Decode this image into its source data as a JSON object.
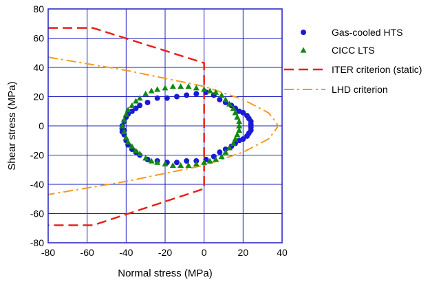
{
  "chart_data": {
    "type": "scatter",
    "xlabel": "Normal stress (MPa)",
    "ylabel": "Shear stress (MPa)",
    "xlim": [
      -80,
      40
    ],
    "ylim": [
      -80,
      80
    ],
    "xticks": [
      "-80",
      "-60",
      "-40",
      "-20",
      "0",
      "20",
      "40"
    ],
    "yticks": [
      "80",
      "60",
      "40",
      "20",
      "0",
      "-20",
      "-40",
      "-60",
      "-80"
    ],
    "xtick_values": [
      -80,
      -60,
      -40,
      -20,
      0,
      20,
      40
    ],
    "ytick_values": [
      80,
      60,
      40,
      20,
      0,
      -20,
      -40,
      -60,
      -80
    ],
    "grid": true,
    "grid_color": "#1f1fbf",
    "legend_position": "right",
    "series": [
      {
        "name": "Gas-cooled HTS",
        "kind": "points",
        "marker": "circle",
        "color": "#1a1ad6",
        "points": [
          [
            -42,
            -2
          ],
          [
            -41,
            -6
          ],
          [
            -40,
            -10
          ],
          [
            -39,
            -13
          ],
          [
            -37,
            -16
          ],
          [
            -35,
            -18
          ],
          [
            -33,
            -20
          ],
          [
            -29,
            -23
          ],
          [
            -24,
            -24
          ],
          [
            -19,
            -25
          ],
          [
            -14,
            -25
          ],
          [
            -9,
            -24
          ],
          [
            -4,
            -24
          ],
          [
            1,
            -23
          ],
          [
            5,
            -21
          ],
          [
            8,
            -18
          ],
          [
            11,
            -16
          ],
          [
            14,
            -14
          ],
          [
            16,
            -12
          ],
          [
            18,
            -10
          ],
          [
            20,
            -9
          ],
          [
            22,
            -7
          ],
          [
            23,
            -5
          ],
          [
            24,
            -3
          ],
          [
            24,
            -1
          ],
          [
            24,
            1
          ],
          [
            24,
            3
          ],
          [
            23,
            5
          ],
          [
            22,
            7
          ],
          [
            20,
            9
          ],
          [
            18,
            10
          ],
          [
            16,
            12
          ],
          [
            14,
            14
          ],
          [
            11,
            16
          ],
          [
            8,
            18
          ],
          [
            5,
            21
          ],
          [
            1,
            23
          ],
          [
            -4,
            22
          ],
          [
            -9,
            21
          ],
          [
            -14,
            20
          ],
          [
            -19,
            19
          ],
          [
            -24,
            19
          ],
          [
            -29,
            16
          ],
          [
            -33,
            14
          ],
          [
            -35,
            12
          ],
          [
            -37,
            10
          ],
          [
            -39,
            8
          ],
          [
            -40,
            6
          ],
          [
            -41,
            3
          ],
          [
            -42,
            0
          ],
          [
            -41,
            -3
          ],
          [
            -42,
            -4
          ]
        ]
      },
      {
        "name": "CICC LTS",
        "kind": "points",
        "marker": "triangle",
        "color": "#0f8a0f",
        "points": [
          [
            -42,
            0
          ],
          [
            -41,
            4
          ],
          [
            -40,
            8
          ],
          [
            -39,
            11
          ],
          [
            -37,
            14
          ],
          [
            -35,
            17
          ],
          [
            -33,
            19
          ],
          [
            -30,
            22
          ],
          [
            -27,
            24
          ],
          [
            -24,
            25
          ],
          [
            -20,
            26
          ],
          [
            -16,
            27
          ],
          [
            -12,
            27
          ],
          [
            -8,
            27
          ],
          [
            -4,
            26
          ],
          [
            0,
            25
          ],
          [
            3,
            24
          ],
          [
            6,
            23
          ],
          [
            9,
            21
          ],
          [
            11,
            18
          ],
          [
            13,
            15
          ],
          [
            15,
            12
          ],
          [
            16,
            9
          ],
          [
            17,
            6
          ],
          [
            18,
            3
          ],
          [
            18,
            0
          ],
          [
            18,
            -3
          ],
          [
            17,
            -6
          ],
          [
            16,
            -9
          ],
          [
            15,
            -12
          ],
          [
            13,
            -15
          ],
          [
            11,
            -18
          ],
          [
            9,
            -21
          ],
          [
            6,
            -23
          ],
          [
            3,
            -24
          ],
          [
            0,
            -25
          ],
          [
            -4,
            -26
          ],
          [
            -8,
            -27
          ],
          [
            -12,
            -27
          ],
          [
            -16,
            -27
          ],
          [
            -20,
            -26
          ],
          [
            -24,
            -25
          ],
          [
            -27,
            -24
          ],
          [
            -30,
            -22
          ],
          [
            -33,
            -19
          ],
          [
            -35,
            -17
          ],
          [
            -37,
            -14
          ],
          [
            -39,
            -11
          ],
          [
            -40,
            -8
          ],
          [
            -41,
            -4
          ]
        ]
      },
      {
        "name": "ITER criterion (static)",
        "kind": "line",
        "style": "dashed",
        "color": "#e8221a",
        "segments": [
          [
            [
              -80,
              67
            ],
            [
              -57,
              67
            ],
            [
              0,
              43
            ],
            [
              0,
              -43
            ],
            [
              -57,
              -68
            ],
            [
              -80,
              -68
            ]
          ]
        ]
      },
      {
        "name": "LHD criterion",
        "kind": "line",
        "style": "dashdot",
        "color": "#f59a1f",
        "segments": [
          [
            [
              -80,
              47
            ],
            [
              -40,
              38
            ],
            [
              0,
              27
            ],
            [
              20,
              18
            ],
            [
              33,
              9
            ],
            [
              36,
              4
            ],
            [
              38,
              0
            ],
            [
              36,
              -4
            ],
            [
              33,
              -9
            ],
            [
              20,
              -18
            ],
            [
              0,
              -27
            ],
            [
              -40,
              -38
            ],
            [
              -80,
              -47
            ]
          ]
        ]
      }
    ]
  }
}
